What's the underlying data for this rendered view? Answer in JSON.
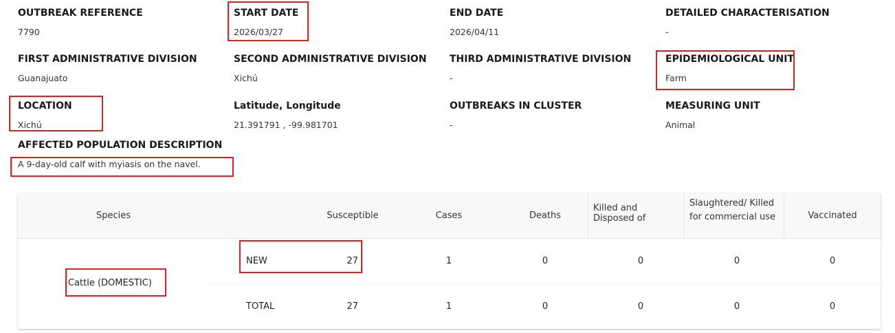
{
  "fields": [
    {
      "label": "OUTBREAK REFERENCE",
      "value": "7790"
    },
    {
      "label": "START DATE",
      "value": "2026/03/27"
    },
    {
      "label": "END DATE",
      "value": "2026/04/11"
    },
    {
      "label": "DETAILED CHARACTERISATION",
      "value": "-"
    },
    {
      "label": "FIRST ADMINISTRATIVE DIVISION",
      "value": "Guanajuato"
    },
    {
      "label": "SECOND ADMINISTRATIVE DIVISION",
      "value": "Xichú"
    },
    {
      "label": "THIRD ADMINISTRATIVE DIVISION",
      "value": "-"
    },
    {
      "label": "EPIDEMIOLOGICAL UNIT",
      "value": "Farm"
    },
    {
      "label": "LOCATION",
      "value": "Xichú"
    },
    {
      "label": "Latitude, Longitude",
      "value": "21.391791 , -99.981701"
    },
    {
      "label": "OUTBREAKS IN CLUSTER",
      "value": "-"
    },
    {
      "label": "MEASURING UNIT",
      "value": "Animal"
    },
    {
      "label": "AFFECTED POPULATION DESCRIPTION",
      "value": "A 9-day-old calf with myiasis on the navel."
    }
  ],
  "table": {
    "headers": [
      "Species",
      "Susceptible",
      "Cases",
      "Deaths",
      "Killed and Disposed of",
      "Slaughtered/ Killed for commercial use",
      "Vaccinated"
    ],
    "species": "Cattle (DOMESTIC)",
    "rows": [
      {
        "type": "NEW",
        "values": [
          27,
          1,
          0,
          0,
          0,
          0
        ]
      },
      {
        "type": "TOTAL",
        "values": [
          27,
          1,
          0,
          0,
          0,
          0
        ]
      }
    ]
  }
}
